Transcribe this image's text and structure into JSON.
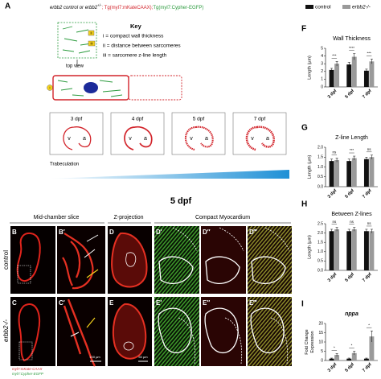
{
  "panel_labels": [
    "A",
    "F",
    "G",
    "H",
    "I"
  ],
  "schematic": {
    "genotype": "erbb2 control or erbb2",
    "genotype_sup": "+/-",
    "red_line": "; Tg(myl7:mKateCAAX);",
    "green_line": "Tg(myl7:Cypher-EGFP)",
    "key_title": "Key",
    "key_items": [
      "i = compact wall thickness",
      "ii = distance between sarcomeres",
      "iii = sarcomere z-line length"
    ],
    "markers": [
      "i",
      "ii",
      "iii"
    ],
    "top_view": "top view",
    "hearts": [
      {
        "stage": "3 dpf",
        "v": "v",
        "a": "a"
      },
      {
        "stage": "4 dpf",
        "v": "v",
        "a": "a"
      },
      {
        "stage": "5 dpf",
        "v": "v",
        "a": "a"
      },
      {
        "stage": "7 dpf",
        "v": "v",
        "a": "a"
      }
    ],
    "gradient_label": "Trabeculation"
  },
  "imaging": {
    "stage": "5 dpf",
    "columns": [
      "Mid-chamber slice",
      "Z-projection",
      "Compact Myocardium"
    ],
    "rows": [
      "control",
      "erbb2-/-"
    ],
    "panels": [
      [
        "B",
        "B′",
        "D",
        "D′",
        "D″",
        "D‴"
      ],
      [
        "C",
        "C′",
        "E",
        "E′",
        "E″",
        "E‴"
      ]
    ],
    "scale_bars": [
      "100 µm",
      "50 µm"
    ],
    "channels": [
      "myl7:mKate-CAAX",
      "myl7:Cypher-EGFP"
    ]
  },
  "chart_data": [
    {
      "type": "bar",
      "title": "Wall Thickness",
      "y_label": [
        "Length (µm)"
      ],
      "categories": [
        "3 dpf",
        "5 dpf",
        "7 dpf"
      ],
      "series": [
        {
          "name": "control",
          "color": "#111111",
          "values": [
            2.2,
            2.9,
            2.1
          ],
          "errors": [
            0.2,
            0.3,
            0.2
          ]
        },
        {
          "name": "erbb2-/-",
          "color": "#9a9a9a",
          "values": [
            3.0,
            3.9,
            3.3
          ],
          "errors": [
            0.3,
            0.4,
            0.3
          ]
        }
      ],
      "significance": [
        "***",
        "****",
        "***"
      ],
      "ylim": [
        0,
        5
      ],
      "yticks": [
        0,
        1,
        2,
        3,
        4,
        5
      ]
    },
    {
      "type": "bar",
      "title": "Z-line Length",
      "y_label": [
        "Length (µm)"
      ],
      "categories": [
        "3 dpf",
        "5 dpf",
        "7 dpf"
      ],
      "series": [
        {
          "name": "control",
          "color": "#111111",
          "values": [
            1.3,
            1.3,
            1.4
          ],
          "errors": [
            0.1,
            0.1,
            0.1
          ]
        },
        {
          "name": "erbb2-/-",
          "color": "#9a9a9a",
          "values": [
            1.35,
            1.45,
            1.5
          ],
          "errors": [
            0.1,
            0.1,
            0.1
          ]
        }
      ],
      "significance": [
        "ns",
        "***",
        "ns"
      ],
      "ylim": [
        0,
        2.0
      ],
      "yticks": [
        {
          "value": 0,
          "label": "0.0"
        },
        0.5,
        {
          "value": 1,
          "label": "1.0"
        },
        1.5,
        {
          "value": 2,
          "label": "2.0"
        }
      ]
    },
    {
      "type": "bar",
      "title": "Between Z-lines",
      "y_label": [
        "Length (µm)"
      ],
      "categories": [
        "3 dpf",
        "5 dpf",
        "7 dpf"
      ],
      "series": [
        {
          "name": "control",
          "color": "#111111",
          "values": [
            2.1,
            2.1,
            2.1
          ],
          "errors": [
            0.1,
            0.1,
            0.1
          ]
        },
        {
          "name": "erbb2-/-",
          "color": "#9a9a9a",
          "values": [
            2.2,
            2.2,
            2.1
          ],
          "errors": [
            0.1,
            0.1,
            0.1
          ]
        }
      ],
      "significance": [
        "ns",
        "ns",
        "ns"
      ],
      "ylim": [
        0,
        2.5
      ],
      "yticks": [
        {
          "value": 0,
          "label": "0.0"
        },
        0.5,
        {
          "value": 1,
          "label": "1.0"
        },
        1.5,
        {
          "value": 2,
          "label": "2.0"
        },
        2.5
      ]
    },
    {
      "type": "bar",
      "title": "nppa",
      "y_label": [
        "Fold Change",
        "Expression"
      ],
      "categories": [
        "3 dpf",
        "5 dpf",
        "7 dpf"
      ],
      "series": [
        {
          "name": "control",
          "color": "#111111",
          "values": [
            1,
            1,
            1
          ],
          "errors": [
            0.3,
            0.3,
            0.3
          ]
        },
        {
          "name": "erbb2-/-",
          "color": "#9a9a9a",
          "values": [
            3,
            4,
            13
          ],
          "errors": [
            0.8,
            1,
            3
          ]
        }
      ],
      "significance": [
        "*",
        "*",
        "*"
      ],
      "ylim": [
        0,
        20
      ],
      "yticks": [
        0,
        5,
        10,
        15,
        20
      ]
    }
  ]
}
